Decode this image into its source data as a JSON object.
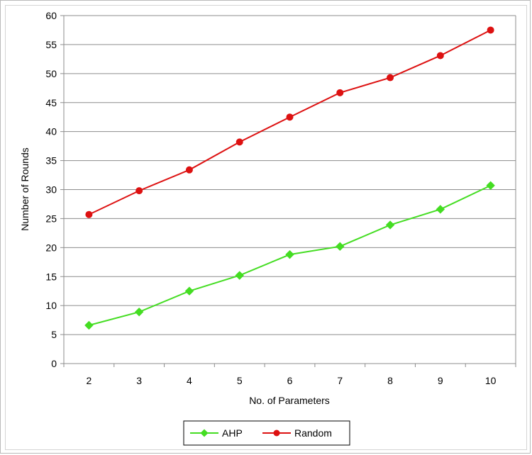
{
  "chart_data": {
    "type": "line",
    "title": "",
    "xlabel": "No. of Parameters",
    "ylabel": "Number of Rounds",
    "x": [
      2,
      3,
      4,
      5,
      6,
      7,
      8,
      9,
      10
    ],
    "x_tick_labels": [
      "2",
      "3",
      "4",
      "5",
      "6",
      "7",
      "8",
      "9",
      "10"
    ],
    "ylim": [
      0,
      60
    ],
    "y_ticks": [
      0,
      5,
      10,
      15,
      20,
      25,
      30,
      35,
      40,
      45,
      50,
      55,
      60
    ],
    "y_tick_labels": [
      "0",
      "5",
      "10",
      "15",
      "20",
      "25",
      "30",
      "35",
      "40",
      "45",
      "50",
      "55",
      "60"
    ],
    "grid": "horizontal",
    "legend_position": "bottom",
    "series": [
      {
        "name": "AHP",
        "color": "#44dd22",
        "marker": "diamond",
        "values": [
          6.6,
          8.9,
          12.5,
          15.2,
          18.8,
          20.2,
          23.9,
          26.6,
          30.7
        ]
      },
      {
        "name": "Random",
        "color": "#dd1111",
        "marker": "circle",
        "values": [
          25.7,
          29.8,
          33.4,
          38.2,
          42.5,
          46.7,
          49.3,
          53.1,
          57.5
        ]
      }
    ]
  }
}
